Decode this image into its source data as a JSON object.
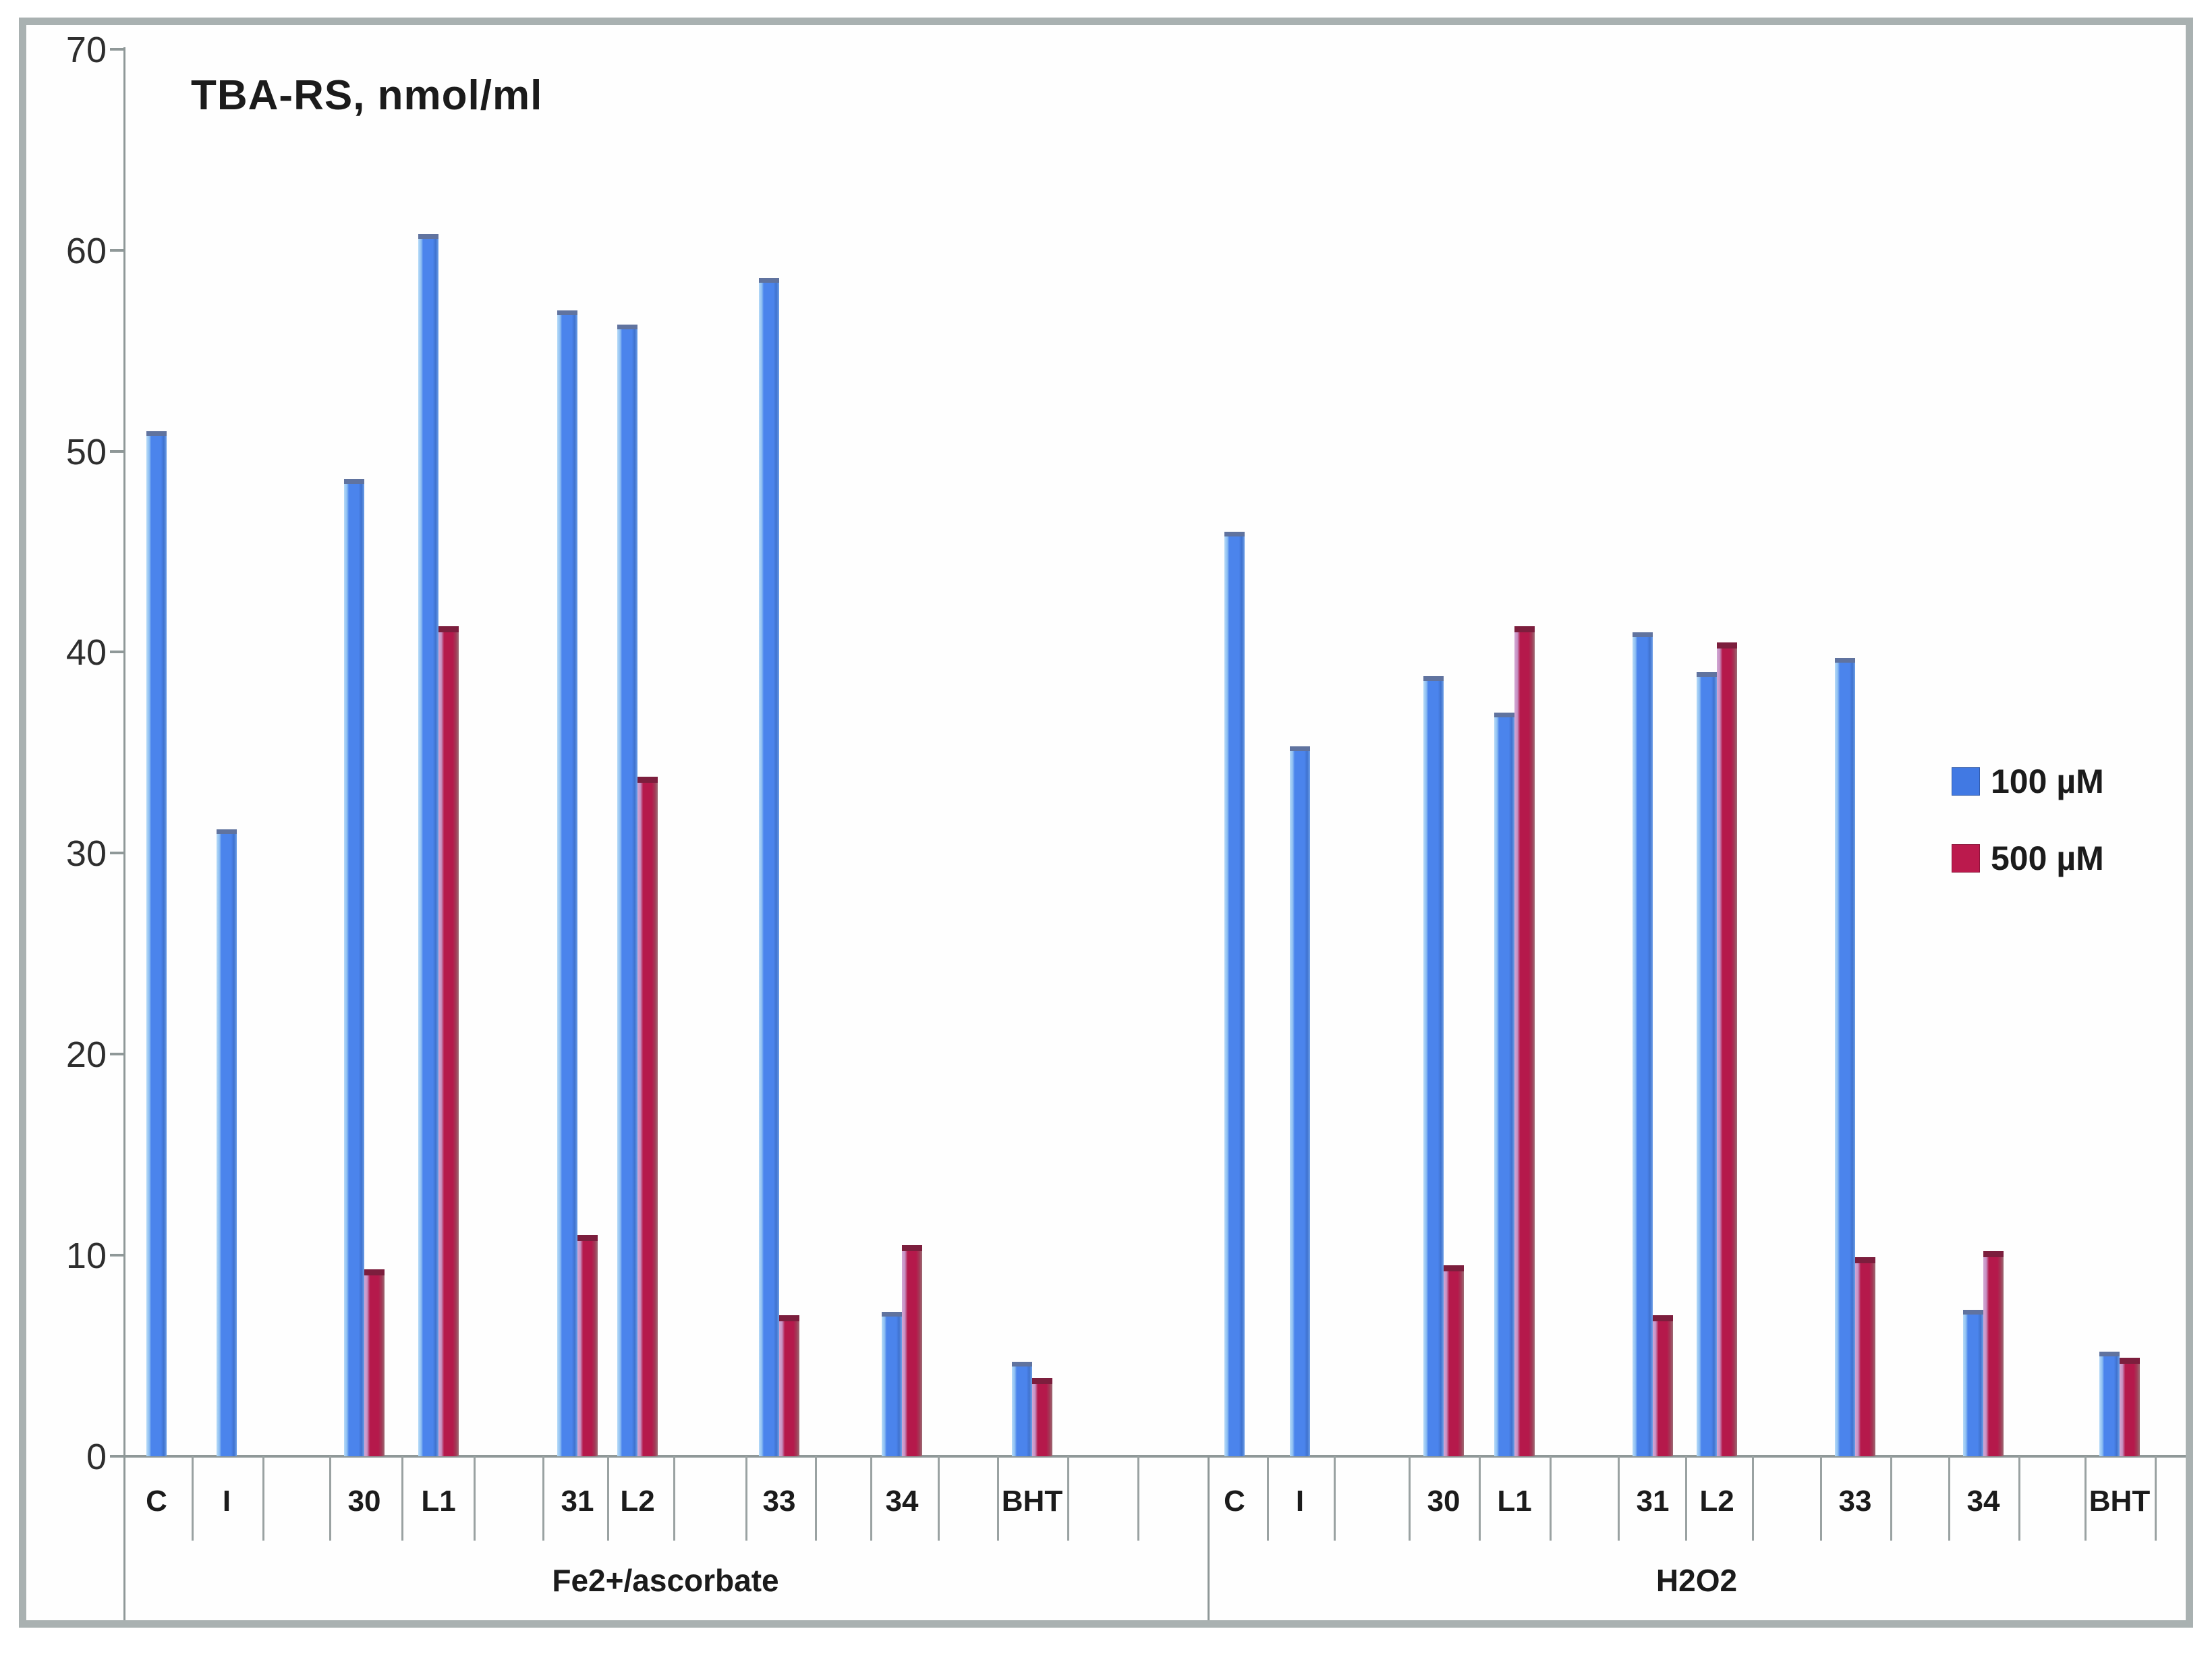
{
  "chart_data": {
    "type": "bar",
    "title": "TBA-RS, nmol/ml",
    "xlabel": "",
    "ylabel": "TBA-RS, nmol/ml",
    "ylim": [
      0,
      70
    ],
    "yticks": [
      0,
      10,
      20,
      30,
      40,
      50,
      60,
      70
    ],
    "grid": false,
    "legend_position": "right",
    "legend": [
      {
        "name": "100 µM",
        "color": "#4179e3"
      },
      {
        "name": "500 µM",
        "color": "#bb1a4d"
      }
    ],
    "groups": [
      {
        "label": "Fe2+/ascorbate",
        "categories": [
          "C",
          "I",
          "30",
          "L1",
          "31",
          "L2",
          "33",
          "34",
          "BHT"
        ],
        "series": [
          {
            "name": "100 µM",
            "values": [
              51,
              31.2,
              48.6,
              60.8,
              57,
              56.3,
              58.6,
              7.2,
              4.7
            ]
          },
          {
            "name": "500 µM",
            "values": [
              null,
              null,
              9.3,
              41.3,
              11,
              33.8,
              7,
              10.5,
              3.9
            ]
          }
        ]
      },
      {
        "label": "H2O2",
        "categories": [
          "C",
          "I",
          "30",
          "L1",
          "31",
          "L2",
          "33",
          "34",
          "BHT"
        ],
        "series": [
          {
            "name": "100 µM",
            "values": [
              46,
              35.3,
              38.8,
              37,
              41,
              39,
              39.7,
              7.3,
              5.2
            ]
          },
          {
            "name": "500 µM",
            "values": [
              null,
              null,
              9.5,
              41.3,
              7,
              40.5,
              9.9,
              10.2,
              4.9
            ]
          }
        ]
      }
    ]
  }
}
